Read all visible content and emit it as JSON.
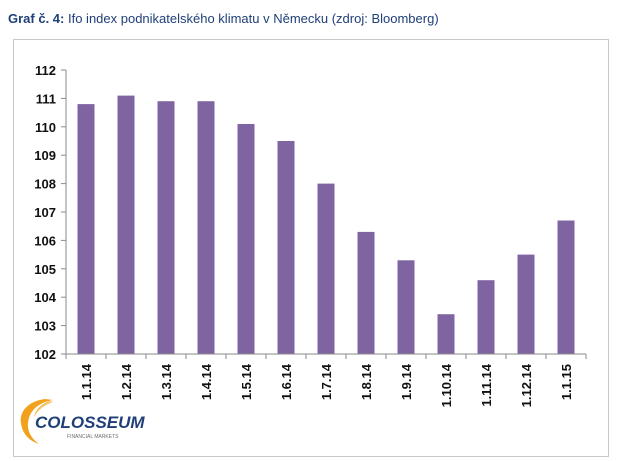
{
  "title": {
    "prefix": "Graf č. 4:",
    "text": "Ifo index podnikatelského klimatu v Německu (zdroj: Bloomberg)"
  },
  "logo": {
    "name": "COLOSSEUM",
    "tagline": "FINANCIAL MARKETS"
  },
  "colors": {
    "bar": "#8064a2",
    "axis": "#8a8a8a",
    "title": "#1f3f78",
    "logo_text": "#1f3f78",
    "logo_swoosh": "#f2a11c"
  },
  "chart_data": {
    "type": "bar",
    "categories": [
      "1.1.14",
      "1.2.14",
      "1.3.14",
      "1.4.14",
      "1.5.14",
      "1.6.14",
      "1.7.14",
      "1.8.14",
      "1.9.14",
      "1.10.14",
      "1.11.14",
      "1.12.14",
      "1.1.15"
    ],
    "values": [
      110.8,
      111.1,
      110.9,
      110.9,
      110.1,
      109.5,
      108.0,
      106.3,
      105.3,
      103.4,
      104.6,
      105.5,
      106.7
    ],
    "yticks": [
      102,
      103,
      104,
      105,
      106,
      107,
      108,
      109,
      110,
      111,
      112
    ],
    "ylim": [
      102,
      112
    ],
    "grid": false,
    "legend": "none"
  }
}
